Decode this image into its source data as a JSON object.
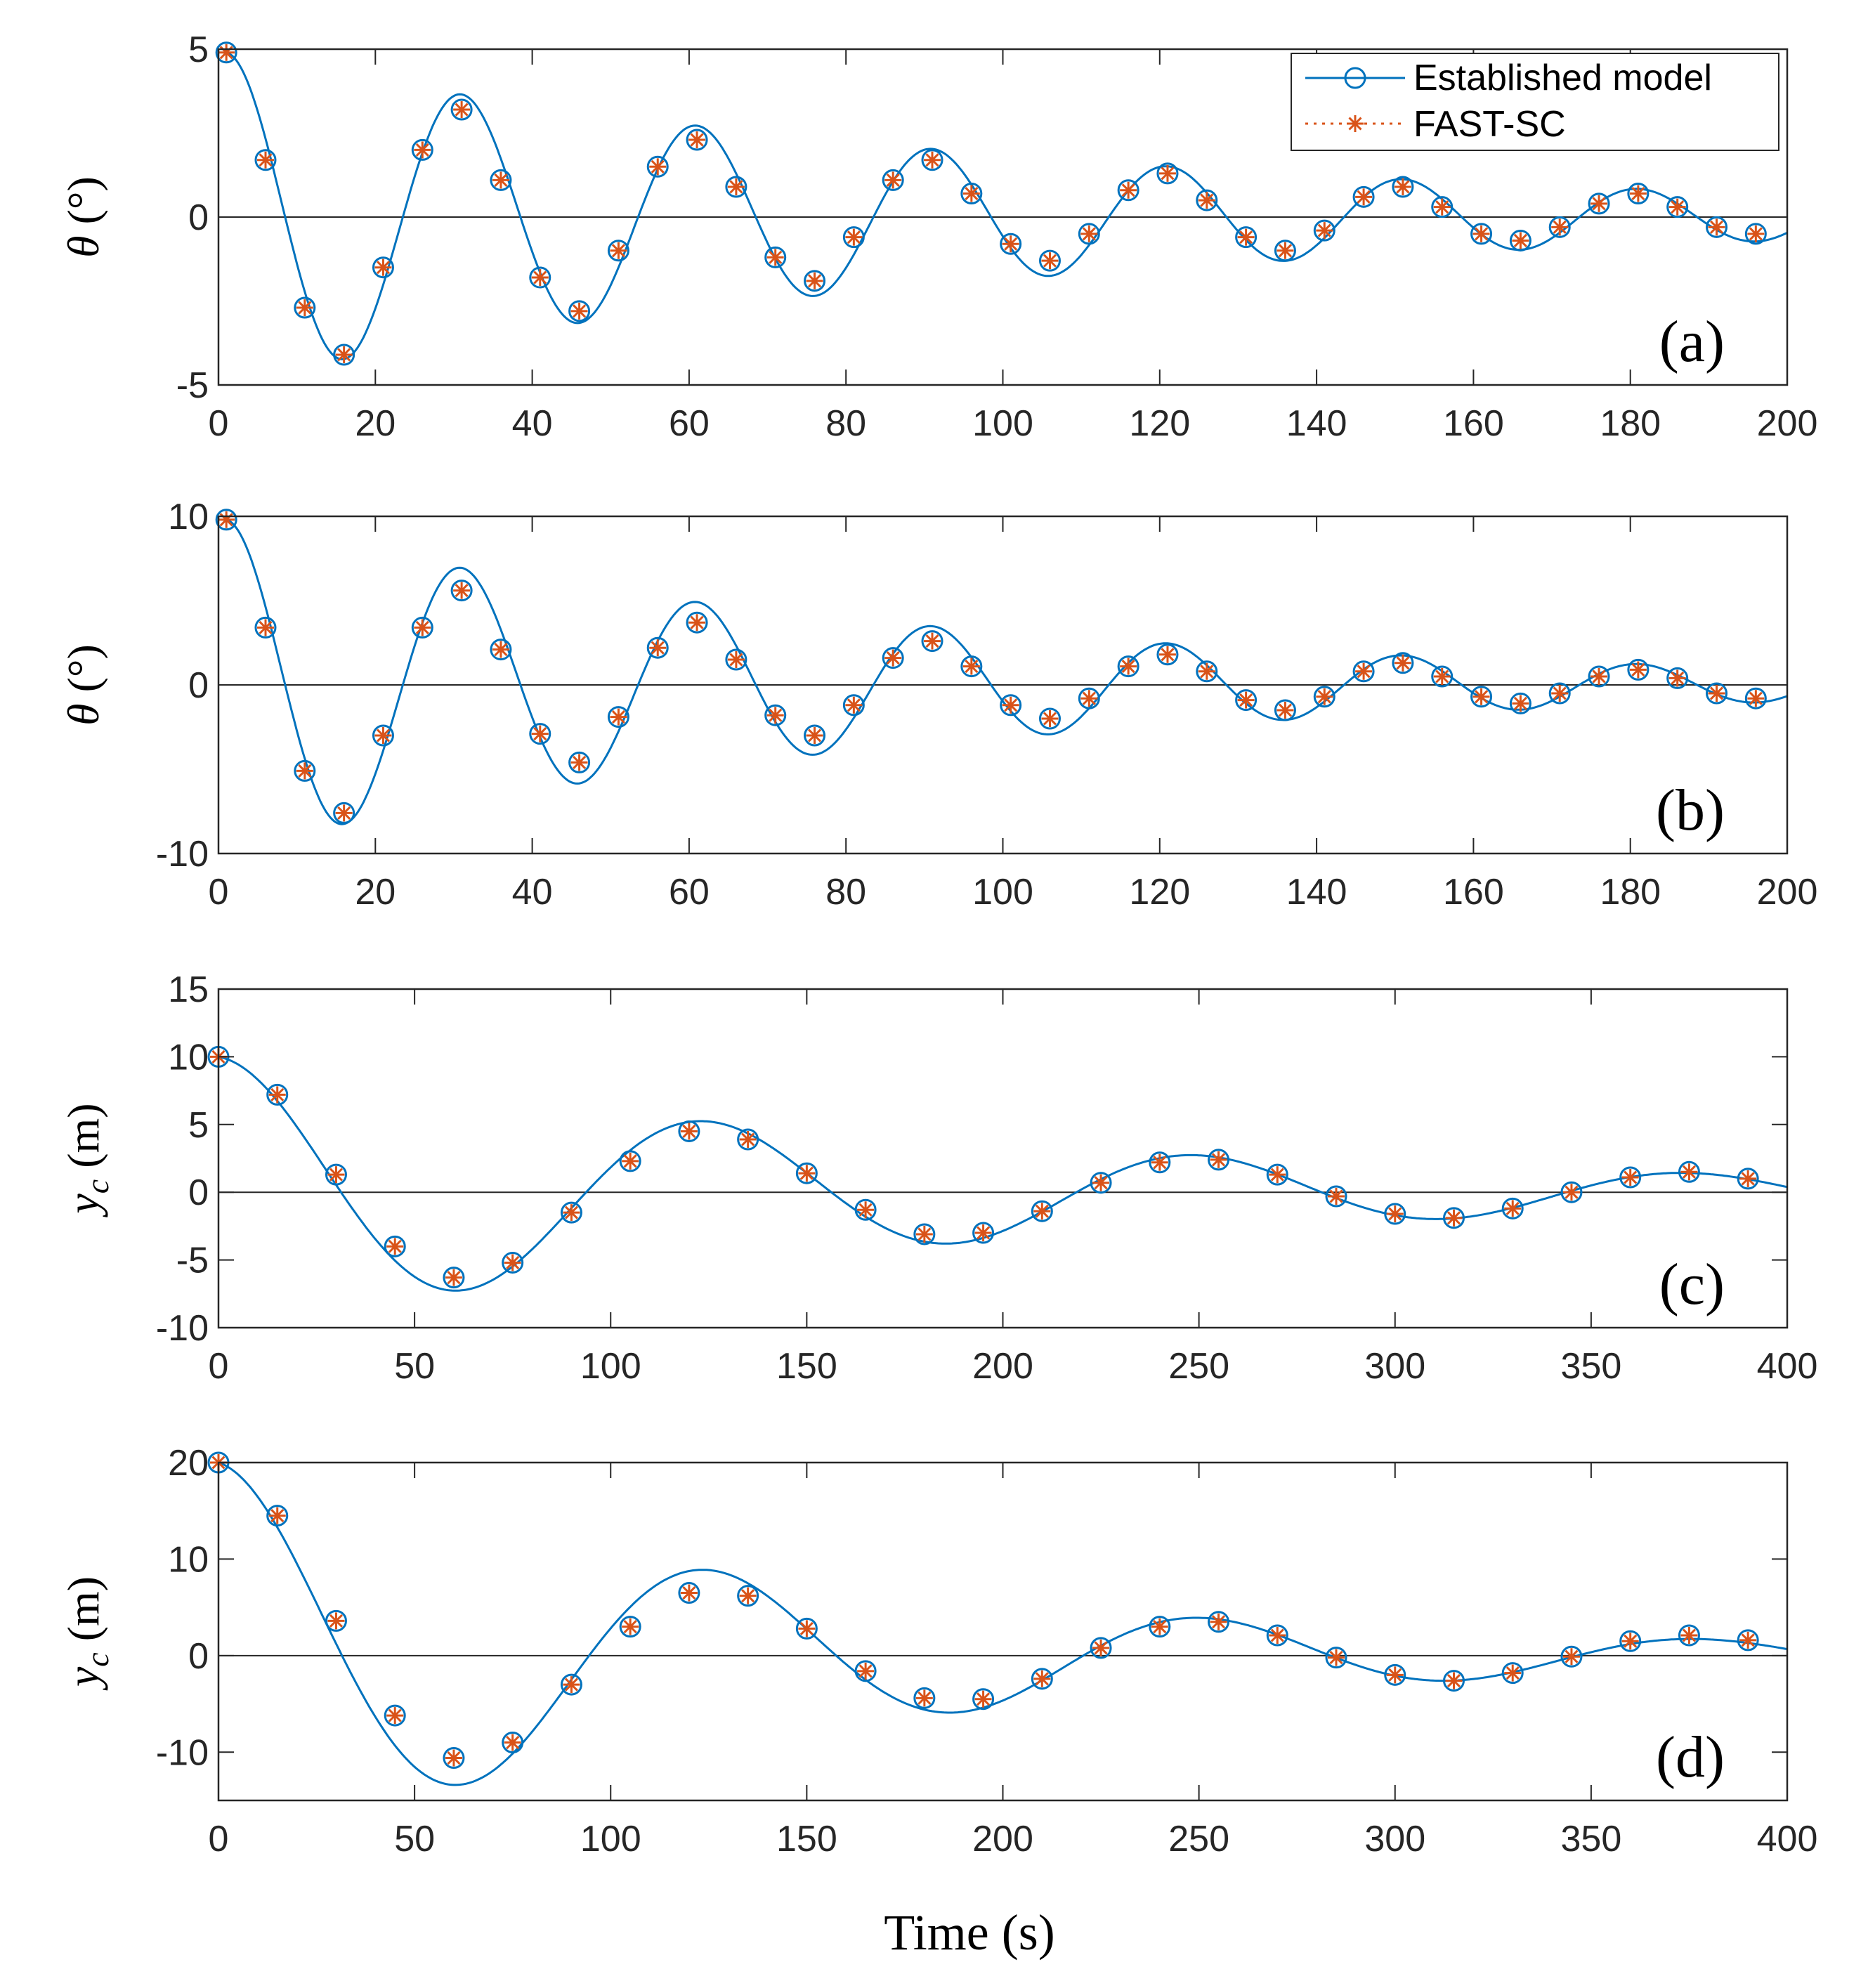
{
  "figure": {
    "xlabel": "Time (s)",
    "legend": [
      {
        "label": "Established model",
        "color": "#0072BD",
        "marker": "circle",
        "line": "solid"
      },
      {
        "label": "FAST-SC",
        "color": "#D95319",
        "marker": "asterisk",
        "line": "dotted"
      }
    ]
  },
  "chart_data": [
    {
      "type": "line",
      "panel_label": "(a)",
      "ylabel_symbol": "θ",
      "ylabel_sub": "",
      "ylabel_unit": " (°)",
      "xlim": [
        0,
        200
      ],
      "ylim": [
        -5,
        5
      ],
      "xticks": [
        0,
        20,
        40,
        60,
        80,
        100,
        120,
        140,
        160,
        180,
        200
      ],
      "yticks": [
        -5,
        0,
        5
      ],
      "legend_position": "top-right",
      "model": {
        "amplitude": 4.9,
        "period": 30,
        "decay": 0.0098,
        "x0": 1
      },
      "series": [
        {
          "name": "Established model",
          "x": [
            1,
            6,
            11,
            16,
            21,
            26,
            31,
            36,
            41,
            46,
            51,
            56,
            61,
            66,
            71,
            76,
            81,
            86,
            91,
            96,
            101,
            106,
            111,
            116,
            121,
            126,
            131,
            136,
            141,
            146,
            151,
            156,
            161,
            166,
            171,
            176,
            181,
            186,
            191,
            196
          ],
          "values": [
            4.9,
            1.7,
            -2.7,
            -4.1,
            -1.5,
            2.0,
            3.2,
            1.1,
            -1.8,
            -2.8,
            -1.0,
            1.5,
            2.3,
            0.9,
            -1.2,
            -1.9,
            -0.6,
            1.1,
            1.7,
            0.7,
            -0.8,
            -1.3,
            -0.5,
            0.8,
            1.3,
            0.5,
            -0.6,
            -1.0,
            -0.4,
            0.6,
            0.9,
            0.3,
            -0.5,
            -0.7,
            -0.3,
            0.4,
            0.7,
            0.3,
            -0.3,
            -0.5
          ]
        },
        {
          "name": "FAST-SC",
          "x": [
            1,
            6,
            11,
            16,
            21,
            26,
            31,
            36,
            41,
            46,
            51,
            56,
            61,
            66,
            71,
            76,
            81,
            86,
            91,
            96,
            101,
            106,
            111,
            116,
            121,
            126,
            131,
            136,
            141,
            146,
            151,
            156,
            161,
            166,
            171,
            176,
            181,
            186,
            191,
            196
          ],
          "values": [
            4.9,
            1.7,
            -2.7,
            -4.1,
            -1.5,
            2.0,
            3.2,
            1.1,
            -1.8,
            -2.8,
            -1.0,
            1.5,
            2.3,
            0.9,
            -1.2,
            -1.9,
            -0.6,
            1.1,
            1.7,
            0.7,
            -0.8,
            -1.3,
            -0.5,
            0.8,
            1.3,
            0.5,
            -0.6,
            -1.0,
            -0.4,
            0.6,
            0.9,
            0.3,
            -0.5,
            -0.7,
            -0.3,
            0.4,
            0.7,
            0.3,
            -0.3,
            -0.5
          ]
        }
      ]
    },
    {
      "type": "line",
      "panel_label": "(b)",
      "ylabel_symbol": "θ",
      "ylabel_sub": "",
      "ylabel_unit": " (°)",
      "xlim": [
        0,
        200
      ],
      "ylim": [
        -10,
        10
      ],
      "xticks": [
        0,
        20,
        40,
        60,
        80,
        100,
        120,
        140,
        160,
        180,
        200
      ],
      "yticks": [
        -10,
        0,
        10
      ],
      "model": {
        "amplitude": 9.8,
        "period": 30,
        "decay": 0.0115,
        "x0": 1
      },
      "series": [
        {
          "name": "Established model",
          "x": [
            1,
            6,
            11,
            16,
            21,
            26,
            31,
            36,
            41,
            46,
            51,
            56,
            61,
            66,
            71,
            76,
            81,
            86,
            91,
            96,
            101,
            106,
            111,
            116,
            121,
            126,
            131,
            136,
            141,
            146,
            151,
            156,
            161,
            166,
            171,
            176,
            181,
            186,
            191,
            196
          ],
          "values": [
            9.8,
            3.4,
            -5.1,
            -7.6,
            -3.0,
            3.4,
            5.6,
            2.1,
            -2.9,
            -4.6,
            -1.9,
            2.2,
            3.7,
            1.5,
            -1.8,
            -3.0,
            -1.2,
            1.6,
            2.6,
            1.1,
            -1.2,
            -2.0,
            -0.8,
            1.1,
            1.8,
            0.8,
            -0.9,
            -1.5,
            -0.7,
            0.8,
            1.3,
            0.5,
            -0.7,
            -1.1,
            -0.5,
            0.5,
            0.9,
            0.4,
            -0.5,
            -0.8
          ]
        },
        {
          "name": "FAST-SC",
          "x": [
            1,
            6,
            11,
            16,
            21,
            26,
            31,
            36,
            41,
            46,
            51,
            56,
            61,
            66,
            71,
            76,
            81,
            86,
            91,
            96,
            101,
            106,
            111,
            116,
            121,
            126,
            131,
            136,
            141,
            146,
            151,
            156,
            161,
            166,
            171,
            176,
            181,
            186,
            191,
            196
          ],
          "values": [
            9.8,
            3.4,
            -5.1,
            -7.6,
            -3.0,
            3.4,
            5.6,
            2.1,
            -2.9,
            -4.6,
            -1.9,
            2.2,
            3.7,
            1.5,
            -1.8,
            -3.0,
            -1.2,
            1.6,
            2.6,
            1.1,
            -1.2,
            -2.0,
            -0.8,
            1.1,
            1.8,
            0.8,
            -0.9,
            -1.5,
            -0.7,
            0.8,
            1.3,
            0.5,
            -0.7,
            -1.1,
            -0.5,
            0.5,
            0.9,
            0.4,
            -0.5,
            -0.8
          ]
        }
      ]
    },
    {
      "type": "line",
      "panel_label": "(c)",
      "ylabel_symbol": "y",
      "ylabel_sub": "c",
      "ylabel_unit": " (m)",
      "xlim": [
        0,
        400
      ],
      "ylim": [
        -10,
        15
      ],
      "xticks": [
        0,
        50,
        100,
        150,
        200,
        250,
        300,
        350,
        400
      ],
      "yticks": [
        -10,
        -5,
        0,
        5,
        10,
        15
      ],
      "model": {
        "amplitude": 10,
        "period": 125,
        "decay": 0.0052,
        "x0": 0
      },
      "series": [
        {
          "name": "Established model",
          "x": [
            0,
            15,
            30,
            45,
            60,
            75,
            90,
            105,
            120,
            135,
            150,
            165,
            180,
            195,
            210,
            225,
            240,
            255,
            270,
            285,
            300,
            315,
            330,
            345,
            360,
            375,
            390
          ],
          "values": [
            10,
            7.2,
            1.3,
            -4.0,
            -6.3,
            -5.2,
            -1.5,
            2.3,
            4.5,
            3.9,
            1.4,
            -1.3,
            -3.1,
            -3.0,
            -1.4,
            0.7,
            2.2,
            2.4,
            1.3,
            -0.3,
            -1.6,
            -1.9,
            -1.2,
            0.0,
            1.1,
            1.5,
            1.0
          ]
        },
        {
          "name": "FAST-SC",
          "x": [
            0,
            15,
            30,
            45,
            60,
            75,
            90,
            105,
            120,
            135,
            150,
            165,
            180,
            195,
            210,
            225,
            240,
            255,
            270,
            285,
            300,
            315,
            330,
            345,
            360,
            375,
            390
          ],
          "values": [
            10,
            7.2,
            1.3,
            -4.0,
            -6.3,
            -5.2,
            -1.5,
            2.3,
            4.5,
            3.9,
            1.4,
            -1.3,
            -3.1,
            -3.0,
            -1.4,
            0.7,
            2.2,
            2.4,
            1.3,
            -0.3,
            -1.6,
            -1.9,
            -1.2,
            0.0,
            1.1,
            1.5,
            1.0
          ]
        }
      ]
    },
    {
      "type": "line",
      "panel_label": "(d)",
      "ylabel_symbol": "y",
      "ylabel_sub": "c",
      "ylabel_unit": " (m)",
      "xlim": [
        0,
        400
      ],
      "ylim": [
        -15,
        20
      ],
      "xticks": [
        0,
        50,
        100,
        150,
        200,
        250,
        300,
        350,
        400
      ],
      "yticks": [
        -10,
        0,
        10,
        20
      ],
      "model": {
        "amplitude": 20,
        "period": 126,
        "decay": 0.0065,
        "x0": 0
      },
      "series": [
        {
          "name": "Established model",
          "x": [
            0,
            15,
            30,
            45,
            60,
            75,
            90,
            105,
            120,
            135,
            150,
            165,
            180,
            195,
            210,
            225,
            240,
            255,
            270,
            285,
            300,
            315,
            330,
            345,
            360,
            375,
            390
          ],
          "values": [
            20,
            14.5,
            3.6,
            -6.2,
            -10.6,
            -9.0,
            -3.0,
            3.0,
            6.5,
            6.2,
            2.8,
            -1.6,
            -4.4,
            -4.5,
            -2.4,
            0.8,
            3.0,
            3.5,
            2.1,
            -0.2,
            -2.0,
            -2.6,
            -1.8,
            -0.1,
            1.5,
            2.1,
            1.6
          ]
        },
        {
          "name": "FAST-SC",
          "x": [
            0,
            15,
            30,
            45,
            60,
            75,
            90,
            105,
            120,
            135,
            150,
            165,
            180,
            195,
            210,
            225,
            240,
            255,
            270,
            285,
            300,
            315,
            330,
            345,
            360,
            375,
            390
          ],
          "values": [
            20,
            14.5,
            3.6,
            -6.2,
            -10.6,
            -9.0,
            -3.0,
            3.0,
            6.5,
            6.2,
            2.8,
            -1.6,
            -4.4,
            -4.5,
            -2.4,
            0.8,
            3.0,
            3.5,
            2.1,
            -0.2,
            -2.0,
            -2.6,
            -1.8,
            -0.1,
            1.5,
            2.1,
            1.6
          ]
        }
      ]
    }
  ]
}
